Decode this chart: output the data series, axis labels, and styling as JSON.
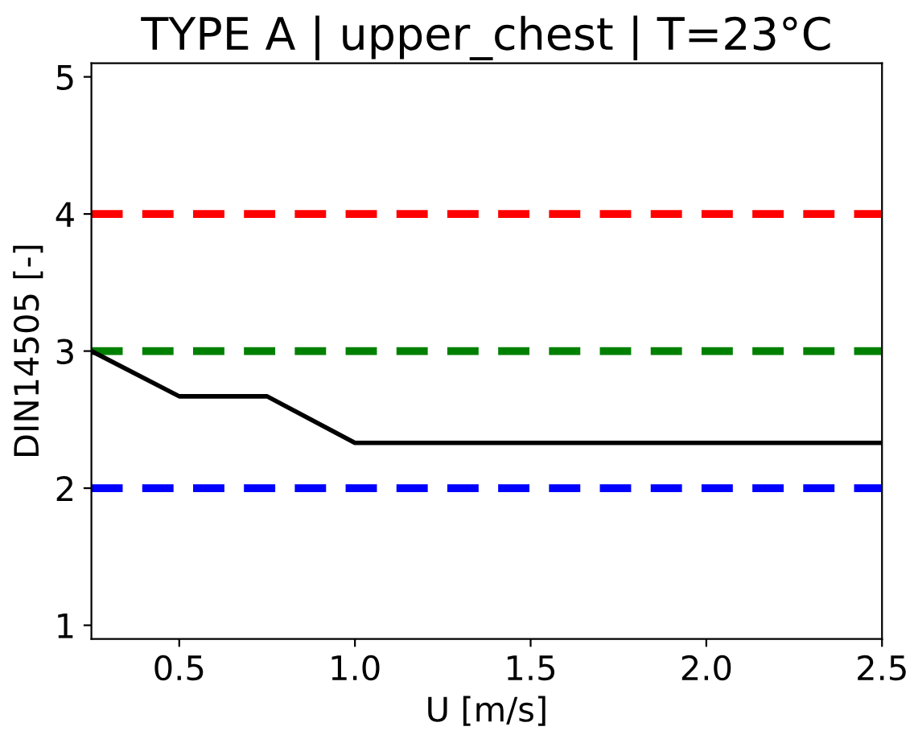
{
  "chart_data": {
    "type": "line",
    "title": "TYPE A | upper_chest | T=23°C",
    "xlabel": "U [m/s]",
    "ylabel": "DIN14505 [-]",
    "x": [
      0.25,
      0.5,
      0.75,
      1.0,
      1.25,
      1.5,
      1.75,
      2.0,
      2.25,
      2.5
    ],
    "series": [
      {
        "color": "#000000",
        "values": [
          3.0,
          2.67,
          2.67,
          2.33,
          2.33,
          2.33,
          2.33,
          2.33,
          2.33,
          2.33
        ]
      }
    ],
    "xlim": [
      0.25,
      2.5
    ],
    "ylim": [
      0.9,
      5.1
    ],
    "xticks": [
      0.5,
      {
        "value": 1,
        "label": "1.0"
      },
      1.5,
      {
        "value": 2,
        "label": "2.0"
      },
      2.5
    ],
    "yticks": [
      1,
      2,
      3,
      4,
      5
    ],
    "ref_lines": [
      {
        "axis": "y",
        "value": 4,
        "color": "#ff0000",
        "line_style": "dashed"
      },
      {
        "axis": "y",
        "value": 3,
        "color": "#008000",
        "line_style": "dashed"
      },
      {
        "axis": "y",
        "value": 2,
        "color": "#0000ff",
        "line_style": "dashed"
      }
    ],
    "grid": false
  }
}
